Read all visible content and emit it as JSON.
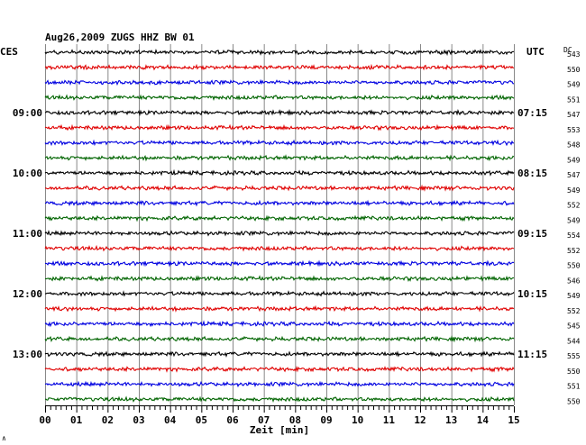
{
  "header": {
    "title": "Aug26,2009   ZUGS HHZ BW 01",
    "left_zone": "CES",
    "right_zone": "UTC",
    "dc_label": "DC"
  },
  "footer": {
    "xlabel": "Zeit [min]",
    "corner_mark": "∧"
  },
  "chart_data": {
    "type": "line",
    "title": "Aug26,2009   ZUGS HHZ BW 01",
    "xlabel": "Zeit [min]",
    "ylabel": "",
    "xlim": [
      0,
      15
    ],
    "x_ticks": [
      "00",
      "01",
      "02",
      "03",
      "04",
      "05",
      "06",
      "07",
      "08",
      "09",
      "10",
      "11",
      "12",
      "13",
      "14",
      "15"
    ],
    "grid": true,
    "trace_colors": [
      "#000000",
      "#e00000",
      "#0000e0",
      "#006400"
    ],
    "left_hour_labels": [
      {
        "row": 4,
        "text": "09:00"
      },
      {
        "row": 8,
        "text": "10:00"
      },
      {
        "row": 12,
        "text": "11:00"
      },
      {
        "row": 16,
        "text": "12:00"
      },
      {
        "row": 20,
        "text": "13:00"
      }
    ],
    "right_hour_labels": [
      {
        "row": 4,
        "text": "07:15"
      },
      {
        "row": 8,
        "text": "08:15"
      },
      {
        "row": 12,
        "text": "09:15"
      },
      {
        "row": 16,
        "text": "10:15"
      },
      {
        "row": 20,
        "text": "11:15"
      }
    ],
    "dc_offsets": [
      543,
      550,
      549,
      551,
      547,
      553,
      548,
      549,
      547,
      549,
      552,
      549,
      554,
      552,
      550,
      546,
      549,
      552,
      545,
      544,
      555,
      550,
      551,
      550
    ],
    "trace_count": 24
  }
}
